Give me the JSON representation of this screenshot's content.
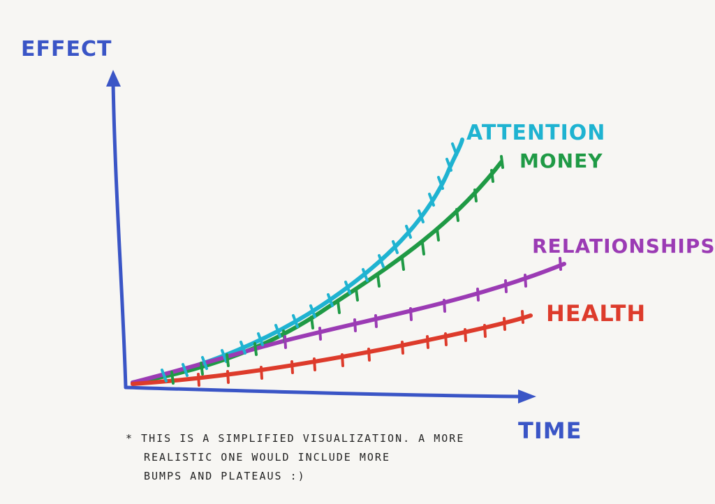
{
  "chart_data": {
    "type": "line",
    "ylabel": "EFFECT",
    "xlabel": "TIME",
    "grid": false,
    "legend": "labels at line ends",
    "series": [
      {
        "name": "ATTENTION",
        "color": "#1fb3d1",
        "points": [
          [
            0,
            0
          ],
          [
            0.2,
            0.07
          ],
          [
            0.4,
            0.17
          ],
          [
            0.6,
            0.33
          ],
          [
            0.8,
            0.58
          ],
          [
            1,
            0.98
          ]
        ]
      },
      {
        "name": "MONEY",
        "color": "#1f9a45",
        "points": [
          [
            0,
            0
          ],
          [
            0.2,
            0.06
          ],
          [
            0.4,
            0.16
          ],
          [
            0.6,
            0.3
          ],
          [
            0.8,
            0.51
          ],
          [
            1,
            0.9
          ]
        ]
      },
      {
        "name": "RELATIONSHIPS",
        "color": "#9b3bb4",
        "points": [
          [
            0,
            0
          ],
          [
            0.2,
            0.09
          ],
          [
            0.4,
            0.18
          ],
          [
            0.6,
            0.26
          ],
          [
            0.8,
            0.33
          ],
          [
            1,
            0.47
          ]
        ]
      },
      {
        "name": "HEALTH",
        "color": "#dd3b2b",
        "points": [
          [
            0,
            0
          ],
          [
            0.2,
            0.04
          ],
          [
            0.4,
            0.08
          ],
          [
            0.6,
            0.14
          ],
          [
            0.8,
            0.22
          ],
          [
            1,
            0.3
          ]
        ]
      }
    ],
    "axis_color": "#3a55c6"
  },
  "footnote": {
    "lines": [
      "* THIS IS A SIMPLIFIED VISUALIZATION. A MORE",
      "REALISTIC ONE WOULD INCLUDE MORE",
      "BUMPS AND PLATEAUS :)"
    ]
  }
}
